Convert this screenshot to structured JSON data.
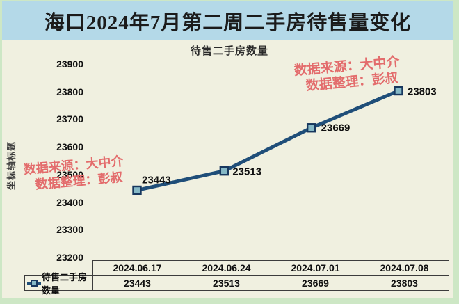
{
  "page": {
    "title": "海口2024年7月第二周二手房待售量变化"
  },
  "watermark": {
    "line1": "数据来源：大中介",
    "line2": "数据整理：彭叔"
  },
  "chart_data": {
    "type": "line",
    "title": "待售二手房数量",
    "y_axis_title": "坐标轴标题",
    "categories": [
      "2024.06.17",
      "2024.06.24",
      "2024.07.01",
      "2024.07.08"
    ],
    "series": [
      {
        "name": "待售二手房数量",
        "values": [
          23443,
          23513,
          23669,
          23803
        ]
      }
    ],
    "data_labels": [
      "23443",
      "23513",
      "23669",
      "23803"
    ],
    "yticks": [
      23900,
      23800,
      23700,
      23600,
      23500,
      23400,
      23300,
      23200
    ],
    "ylim": [
      23200,
      23900
    ],
    "grid": false,
    "legend_position": "data-table-left"
  },
  "data_table": {
    "legend_label": "待售二手房数量",
    "columns": [
      "2024.06.17",
      "2024.06.24",
      "2024.07.01",
      "2024.07.08"
    ],
    "values": [
      "23443",
      "23513",
      "23669",
      "23803"
    ]
  },
  "colors": {
    "page_bg": "#cde7c5",
    "banner_bg": "#b4d9e8",
    "chart_bg": "#f0f0e0",
    "title_text": "#1b1b1b",
    "watermark": "#e36c6c",
    "line": "#1f4e79",
    "marker_fill": "#85b8c6",
    "text": "#111111"
  }
}
